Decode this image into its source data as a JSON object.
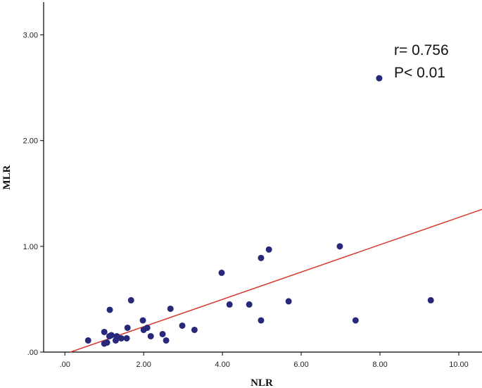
{
  "chart_data": {
    "type": "scatter",
    "x_label": "NLR",
    "y_label": "MLR",
    "annotations": [
      "r= 0.756",
      "P< 0.01"
    ],
    "color": "#27287a",
    "fit_color": "#d63a2f",
    "xlim": [
      -0.54,
      10.59
    ],
    "ylim": [
      0,
      3.31
    ],
    "xticks": [
      {
        "value": 0,
        "label": ".00"
      },
      {
        "value": 2,
        "label": "2.00"
      },
      {
        "value": 4,
        "label": "4.00"
      },
      {
        "value": 6,
        "label": "6.00"
      },
      {
        "value": 8,
        "label": "8.00"
      },
      {
        "value": 10,
        "label": "10.00"
      }
    ],
    "yticks": [
      {
        "value": 0,
        "label": ".00"
      },
      {
        "value": 1,
        "label": "1.00"
      },
      {
        "value": 2,
        "label": "2.00"
      },
      {
        "value": 3,
        "label": "3.00"
      }
    ],
    "fit_line": {
      "x": [
        0.14,
        10.59
      ],
      "y": [
        0,
        1.35
      ]
    },
    "x": [
      0.59,
      1.0,
      1.0,
      1.07,
      1.13,
      1.14,
      1.18,
      1.29,
      1.32,
      1.43,
      1.57,
      1.59,
      1.68,
      1.98,
      2.0,
      2.09,
      2.18,
      2.48,
      2.57,
      2.68,
      2.98,
      3.29,
      3.98,
      4.18,
      4.68,
      4.98,
      4.98,
      5.18,
      5.68,
      6.98,
      7.38,
      7.98,
      9.29
    ],
    "values": [
      0.11,
      0.08,
      0.19,
      0.09,
      0.15,
      0.4,
      0.16,
      0.11,
      0.15,
      0.13,
      0.13,
      0.23,
      0.49,
      0.3,
      0.21,
      0.23,
      0.15,
      0.17,
      0.11,
      0.41,
      0.25,
      0.21,
      0.75,
      0.45,
      0.45,
      0.3,
      0.89,
      0.97,
      0.48,
      1.0,
      0.3,
      2.59,
      0.49
    ]
  }
}
